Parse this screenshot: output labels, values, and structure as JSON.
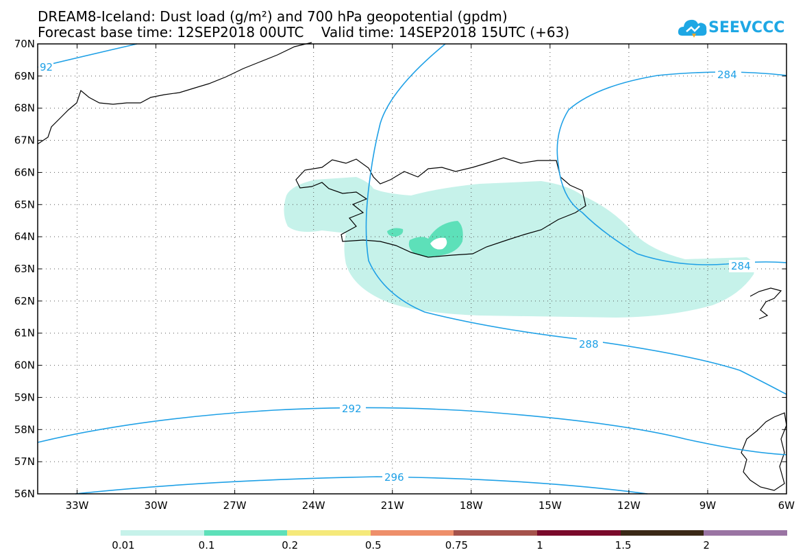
{
  "header": {
    "title_line1": "DREAM8-Iceland: Dust load (g/m²) and 700 hPa geopotential (gpdm)",
    "title_line2": "Forecast base time: 12SEP2018 00UTC    Valid time: 14SEP2018 15UTC (+63)"
  },
  "logo": {
    "text": "SEEVCCC",
    "color": "#1ea7e4",
    "icon": "cloud-logo-icon"
  },
  "map": {
    "lon_range": [
      -34.5,
      -6
    ],
    "lat_range": [
      56,
      70
    ],
    "lat_ticks": [
      "70N",
      "69N",
      "68N",
      "67N",
      "66N",
      "65N",
      "64N",
      "63N",
      "62N",
      "61N",
      "60N",
      "59N",
      "58N",
      "57N",
      "56N"
    ],
    "lon_ticks": [
      "33W",
      "30W",
      "27W",
      "24W",
      "21W",
      "18W",
      "15W",
      "12W",
      "9W",
      "6W"
    ],
    "contour_color": "#1ea0e6",
    "contour_labels": [
      "92",
      "284",
      "284",
      "288",
      "292",
      "296"
    ]
  },
  "colorbar": {
    "colors": [
      "#c6f2ea",
      "#5de0b9",
      "#f5e97a",
      "#ee8f6a",
      "#a5524b",
      "#7a0a2b",
      "#3a2816",
      "#9a74a3"
    ],
    "labels": [
      "0.01",
      "0.1",
      "0.2",
      "0.5",
      "0.75",
      "1",
      "1.5",
      "2"
    ]
  }
}
